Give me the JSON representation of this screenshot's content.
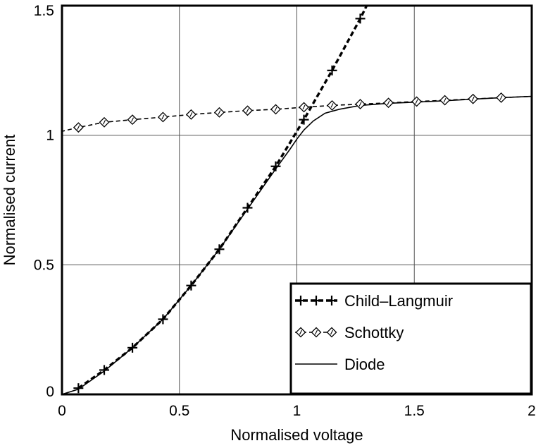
{
  "chart_data": {
    "type": "line",
    "title": "",
    "xlabel": "Normalised voltage",
    "ylabel": "Normalised current",
    "xlim": [
      0,
      2
    ],
    "ylim": [
      0,
      1.5
    ],
    "xticks": [
      0,
      0.5,
      1,
      1.5,
      2
    ],
    "yticks": [
      0,
      0.5,
      1,
      1.5
    ],
    "xtick_labels": [
      "0",
      "0.5",
      "1",
      "1.5",
      "2"
    ],
    "ytick_labels": [
      "0",
      "0.5",
      "1",
      "1.5"
    ],
    "grid": true,
    "legend_position": "bottom-right",
    "series": [
      {
        "name": "Child–Langmuir",
        "style": "dashed-bold",
        "marker": "plus",
        "color": "#000000",
        "x": [
          0.07,
          0.18,
          0.3,
          0.43,
          0.55,
          0.67,
          0.79,
          0.91,
          1.03,
          1.15,
          1.27
        ],
        "y": [
          0.024,
          0.094,
          0.18,
          0.29,
          0.42,
          0.56,
          0.72,
          0.88,
          1.06,
          1.25,
          1.45
        ]
      },
      {
        "name": "Schottky",
        "style": "dashed",
        "marker": "diamond",
        "color": "#000000",
        "x": [
          0.0,
          0.0,
          0.07,
          0.18,
          0.3,
          0.43,
          0.55,
          0.67,
          0.79,
          0.91,
          1.03,
          1.15,
          1.27,
          1.39,
          1.51,
          1.63,
          1.75,
          1.87,
          2.0
        ],
        "y": [
          1.01,
          1.015,
          1.03,
          1.05,
          1.06,
          1.07,
          1.08,
          1.088,
          1.095,
          1.1,
          1.108,
          1.115,
          1.12,
          1.125,
          1.13,
          1.135,
          1.14,
          1.145,
          1.15
        ]
      },
      {
        "name": "Diode",
        "style": "solid",
        "marker": "none",
        "color": "#000000",
        "x": [
          0.0,
          0.07,
          0.18,
          0.3,
          0.43,
          0.55,
          0.67,
          0.79,
          0.91,
          0.97,
          1.0,
          1.03,
          1.07,
          1.12,
          1.18,
          1.27,
          1.39,
          1.51,
          1.63,
          1.75,
          1.87,
          2.0
        ],
        "y": [
          0.0,
          0.02,
          0.09,
          0.18,
          0.29,
          0.42,
          0.56,
          0.715,
          0.87,
          0.945,
          0.985,
          1.02,
          1.055,
          1.085,
          1.1,
          1.115,
          1.123,
          1.128,
          1.133,
          1.139,
          1.145,
          1.15
        ]
      }
    ]
  }
}
